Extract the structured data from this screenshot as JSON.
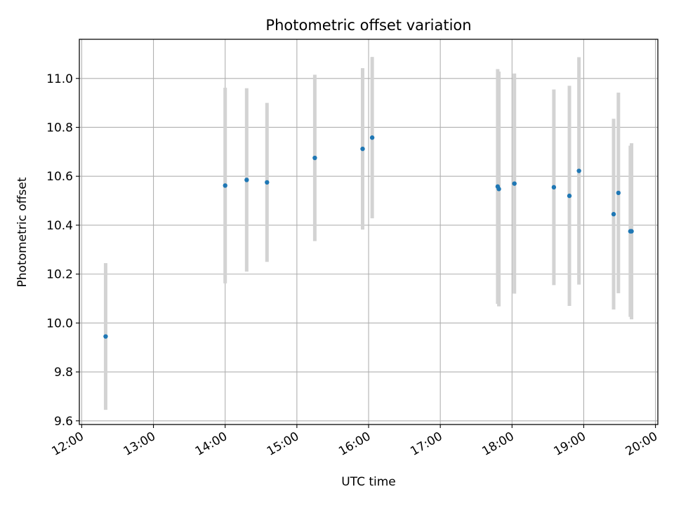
{
  "chart_data": {
    "type": "scatter",
    "title": "Photometric offset variation",
    "xlabel": "UTC time",
    "ylabel": "Photometric offset",
    "xlim": [
      "11:58",
      "20:02"
    ],
    "ylim": [
      9.585,
      11.16
    ],
    "grid": true,
    "x_ticks": [
      "12:00",
      "13:00",
      "14:00",
      "15:00",
      "16:00",
      "17:00",
      "18:00",
      "19:00",
      "20:00"
    ],
    "y_ticks": [
      "9.6",
      "9.8",
      "10.0",
      "10.2",
      "10.4",
      "10.6",
      "10.8",
      "11.0"
    ],
    "colors": {
      "point": "#1f77b4",
      "errorbar": "#d3d3d3",
      "grid": "#b0b0b0"
    },
    "series": [
      {
        "points": [
          {
            "x": "12:20",
            "y": 9.945,
            "err": 0.3
          },
          {
            "x": "14:00",
            "y": 10.562,
            "err": 0.4
          },
          {
            "x": "14:18",
            "y": 10.585,
            "err": 0.375
          },
          {
            "x": "14:35",
            "y": 10.575,
            "err": 0.325
          },
          {
            "x": "15:15",
            "y": 10.675,
            "err": 0.34
          },
          {
            "x": "15:55",
            "y": 10.712,
            "err": 0.33
          },
          {
            "x": "16:03",
            "y": 10.758,
            "err": 0.33
          },
          {
            "x": "17:48",
            "y": 10.558,
            "err": 0.48
          },
          {
            "x": "17:49",
            "y": 10.548,
            "err": 0.48
          },
          {
            "x": "18:02",
            "y": 10.57,
            "err": 0.45
          },
          {
            "x": "18:35",
            "y": 10.555,
            "err": 0.4
          },
          {
            "x": "18:48",
            "y": 10.52,
            "err": 0.45
          },
          {
            "x": "18:56",
            "y": 10.622,
            "err": 0.465
          },
          {
            "x": "19:25",
            "y": 10.445,
            "err": 0.39
          },
          {
            "x": "19:29",
            "y": 10.532,
            "err": 0.41
          },
          {
            "x": "19:39",
            "y": 10.375,
            "err": 0.35
          },
          {
            "x": "19:40",
            "y": 10.375,
            "err": 0.36
          }
        ]
      }
    ]
  }
}
